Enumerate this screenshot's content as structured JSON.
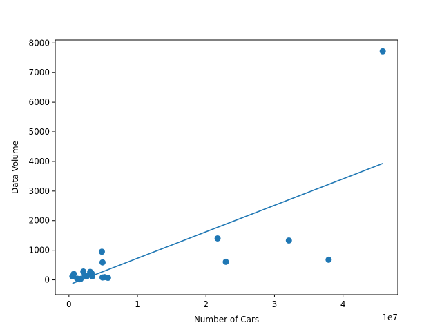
{
  "chart_data": {
    "type": "scatter",
    "title": "",
    "xlabel": "Number of Cars",
    "ylabel": "Data Volume",
    "x_offset_text": "1e7",
    "xlim": [
      -2000000,
      48000000
    ],
    "ylim": [
      -500,
      8100
    ],
    "x_ticks": [
      0,
      10000000,
      20000000,
      30000000,
      40000000
    ],
    "x_tick_labels": [
      "0",
      "1",
      "2",
      "3",
      "4"
    ],
    "y_ticks": [
      0,
      1000,
      2000,
      3000,
      4000,
      5000,
      6000,
      7000,
      8000
    ],
    "y_tick_labels": [
      "0",
      "1000",
      "2000",
      "3000",
      "4000",
      "5000",
      "6000",
      "7000",
      "8000"
    ],
    "grid": false,
    "series": [
      {
        "type": "scatter",
        "color": "#1f77b4",
        "points": [
          {
            "x": 500000,
            "y": 120
          },
          {
            "x": 700000,
            "y": 200
          },
          {
            "x": 1200000,
            "y": 40
          },
          {
            "x": 1500000,
            "y": 20
          },
          {
            "x": 1700000,
            "y": 30
          },
          {
            "x": 2100000,
            "y": 280
          },
          {
            "x": 2300000,
            "y": 160
          },
          {
            "x": 2600000,
            "y": 120
          },
          {
            "x": 3100000,
            "y": 270
          },
          {
            "x": 3300000,
            "y": 220
          },
          {
            "x": 3400000,
            "y": 120
          },
          {
            "x": 4800000,
            "y": 950
          },
          {
            "x": 4900000,
            "y": 590
          },
          {
            "x": 4900000,
            "y": 80
          },
          {
            "x": 5200000,
            "y": 90
          },
          {
            "x": 5700000,
            "y": 70
          },
          {
            "x": 21700000,
            "y": 1400
          },
          {
            "x": 22900000,
            "y": 610
          },
          {
            "x": 32100000,
            "y": 1330
          },
          {
            "x": 37900000,
            "y": 680
          },
          {
            "x": 45800000,
            "y": 7720
          }
        ]
      },
      {
        "type": "line",
        "color": "#1f77b4",
        "points": [
          {
            "x": 500000,
            "y": -120
          },
          {
            "x": 45800000,
            "y": 3930
          }
        ]
      }
    ]
  }
}
